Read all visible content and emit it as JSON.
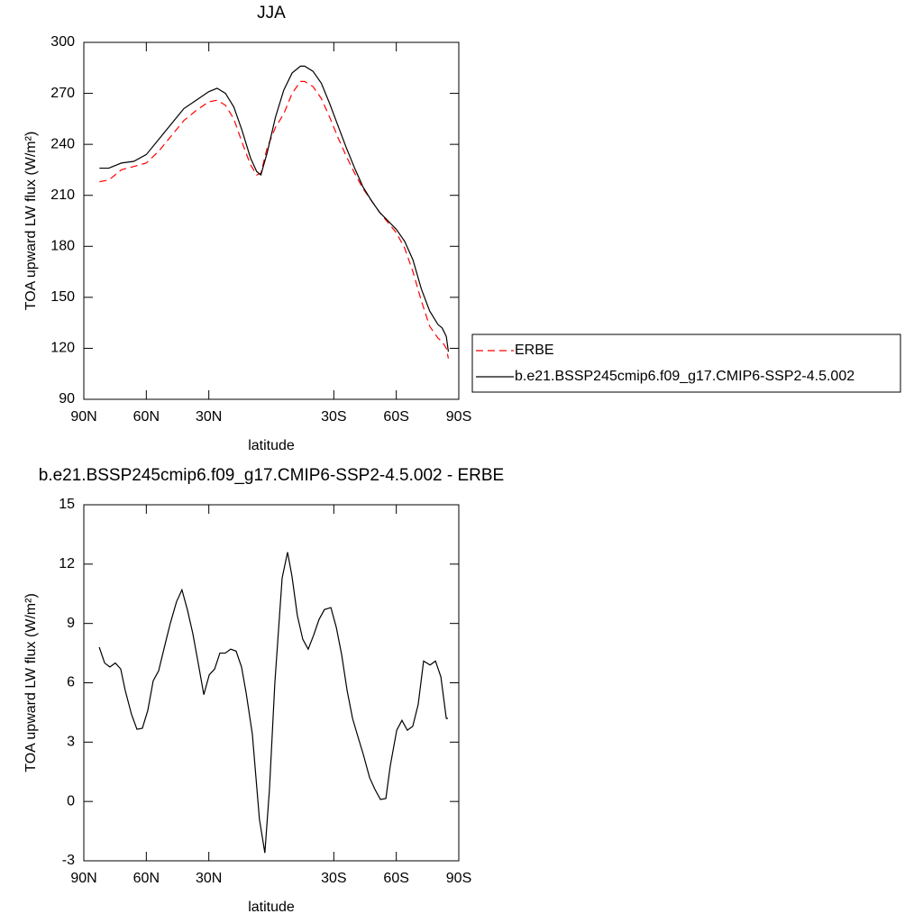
{
  "chart_data": [
    {
      "type": "line",
      "title": "JJA",
      "x_label": "latitude",
      "y_label": "TOA upward LW flux (W/m²)",
      "x": [
        82.5,
        78,
        72,
        66,
        60,
        54,
        48,
        42,
        36,
        30,
        26,
        22,
        18,
        14,
        10,
        7,
        5,
        2,
        -2,
        -6,
        -10,
        -14,
        -16,
        -20,
        -24,
        -28,
        -32,
        -36,
        -40,
        -44,
        -48,
        -52,
        -56,
        -60,
        -64,
        -68,
        -72,
        -76,
        -80,
        -82,
        -84,
        -85
      ],
      "series": [
        {
          "name": "ERBE",
          "color": "#ff0000",
          "linestyle": "dashed",
          "values": [
            218,
            219,
            225,
            227,
            229,
            236,
            245,
            254,
            260,
            265,
            266,
            263,
            255,
            241,
            228,
            222,
            223,
            238,
            250,
            258,
            270,
            277,
            277,
            274,
            267,
            256,
            244,
            233,
            223,
            214,
            207,
            200,
            194,
            188,
            179,
            165,
            148,
            133,
            126,
            124,
            120,
            114
          ]
        },
        {
          "name": "b.e21.BSSP245cmip6.f09_g17.CMIP6-SSP2-4.5.002",
          "color": "#000000",
          "linestyle": "solid",
          "values": [
            226,
            226,
            229,
            230,
            234,
            243,
            252,
            261,
            266,
            271,
            273,
            270,
            262,
            248,
            232,
            224,
            222,
            235,
            256,
            272,
            282,
            286,
            286,
            283,
            276,
            264,
            251,
            238,
            226,
            215,
            207,
            200,
            195,
            190,
            183,
            172,
            155,
            142,
            134,
            132,
            127,
            118
          ]
        }
      ],
      "xlim": [
        90,
        -90
      ],
      "xticks": [
        {
          "value": 90,
          "label": "90N"
        },
        {
          "value": 60,
          "label": "60N"
        },
        {
          "value": 30,
          "label": "30N"
        },
        {
          "value": -30,
          "label": "30S"
        },
        {
          "value": -60,
          "label": "60S"
        },
        {
          "value": -90,
          "label": "90S"
        }
      ],
      "ylim": [
        90,
        300
      ],
      "yticks": [
        90,
        120,
        150,
        180,
        210,
        240,
        270,
        300
      ],
      "legend": "right"
    },
    {
      "type": "line",
      "title": "b.e21.BSSP245cmip6.f09_g17.CMIP6-SSP2-4.5.002 - ERBE",
      "x_label": "latitude",
      "y_label": "TOA upward LW flux (W/m²)",
      "x": [
        82.6,
        80.0,
        77.5,
        74.9,
        72.3,
        70.1,
        67.1,
        64.5,
        61.9,
        59.3,
        56.7,
        54.1,
        51.1,
        48.5,
        45.5,
        42.9,
        40.3,
        37.7,
        35.1,
        32.4,
        29.8,
        27.2,
        24.7,
        22.1,
        19.5,
        16.9,
        14.3,
        12.1,
        9.1,
        5.7,
        3.1,
        0.9,
        -1.7,
        -5.2,
        -7.8,
        -9.9,
        -12.5,
        -15.1,
        -17.7,
        -20.3,
        -22.9,
        -25.5,
        -28.6,
        -31.2,
        -33.8,
        -36.4,
        -39.0,
        -41.5,
        -44.1,
        -47.2,
        -49.8,
        -52.4,
        -55.0,
        -57.1,
        -60.2,
        -62.7,
        -65.3,
        -67.9,
        -70.5,
        -73.1,
        -76.2,
        -78.8,
        -81.4,
        -84.0,
        -84.8
      ],
      "series": [
        {
          "name": "difference",
          "color": "#000000",
          "linestyle": "solid",
          "values": [
            7.8,
            7.0,
            6.8,
            7.0,
            6.7,
            5.6,
            4.4,
            3.65,
            3.7,
            4.6,
            6.1,
            6.6,
            7.9,
            9.0,
            10.1,
            10.7,
            9.7,
            8.5,
            7.0,
            5.4,
            6.4,
            6.7,
            7.5,
            7.5,
            7.7,
            7.6,
            6.8,
            5.5,
            3.4,
            -0.9,
            -2.6,
            0.6,
            6.0,
            11.3,
            12.6,
            11.4,
            9.4,
            8.2,
            7.7,
            8.4,
            9.2,
            9.7,
            9.8,
            8.8,
            7.4,
            5.6,
            4.2,
            3.3,
            2.4,
            1.2,
            0.6,
            0.1,
            0.15,
            1.8,
            3.6,
            4.1,
            3.6,
            3.8,
            4.9,
            7.1,
            6.9,
            7.1,
            6.3,
            4.2,
            4.2
          ]
        }
      ],
      "xlim": [
        90,
        -90
      ],
      "xticks": [
        {
          "value": 90,
          "label": "90N"
        },
        {
          "value": 60,
          "label": "60N"
        },
        {
          "value": 30,
          "label": "30N"
        },
        {
          "value": -30,
          "label": "30S"
        },
        {
          "value": -60,
          "label": "60S"
        },
        {
          "value": -90,
          "label": "90S"
        }
      ],
      "ylim": [
        -3,
        15
      ],
      "yticks": [
        -3,
        0,
        3,
        6,
        9,
        12,
        15
      ]
    }
  ]
}
